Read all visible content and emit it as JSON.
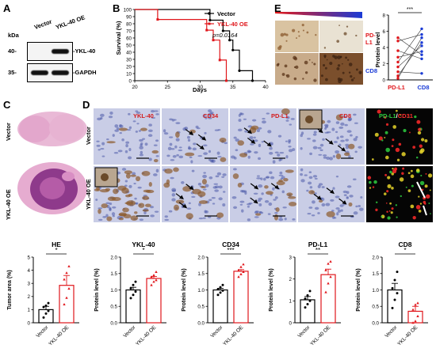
{
  "panelA": {
    "letter": "A",
    "unit": "kDa",
    "lanes": [
      "Vector",
      "YKL-40 OE"
    ],
    "rows": [
      {
        "marker": "40-",
        "protein": "-YKL-40",
        "bands": [
          0.05,
          1.0
        ]
      },
      {
        "marker": "35-",
        "protein": "-GAPDH",
        "bands": [
          1.0,
          1.0
        ]
      }
    ]
  },
  "panelB": {
    "letter": "B",
    "ylabel": "Survival (%)",
    "xlabel": "Days",
    "legend": [
      "Vector",
      "YKL-40 OE"
    ],
    "pvalue": "p=0.0164",
    "colors": {
      "vector": "#000000",
      "oe": "#e0161b"
    }
  },
  "panelC": {
    "letter": "C",
    "rows": [
      "Vector",
      "YKL-40 OE"
    ]
  },
  "panelD": {
    "letter": "D",
    "rows": [
      "Vector",
      "YKL-40 OE"
    ],
    "stains": [
      "YKL-40",
      "CD34",
      "PD-L1",
      "CD8"
    ],
    "fluor_labels": [
      "PD-L1",
      "/",
      "CD31"
    ]
  },
  "panelE": {
    "letter": "E",
    "labels": [
      "PD-L1",
      "CD8"
    ],
    "ylabel": "Protein level",
    "xlabels": [
      "PD-L1",
      "CD8"
    ],
    "significance": "***"
  },
  "chart_data": [
    {
      "type": "line",
      "panel": "B",
      "xlabel": "Days",
      "ylabel": "Survival (%)",
      "xlim": [
        20,
        40
      ],
      "ylim": [
        0,
        100
      ],
      "xticks": [
        20,
        25,
        30,
        35,
        40
      ],
      "yticks": [
        0,
        10,
        20,
        30,
        40,
        50,
        60,
        70,
        80,
        90,
        100
      ],
      "series": [
        {
          "name": "Vector",
          "steps": [
            [
              20,
              100
            ],
            [
              31.5,
              100
            ],
            [
              31.5,
              85
            ],
            [
              33.5,
              85
            ],
            [
              33.5,
              70
            ],
            [
              34.5,
              70
            ],
            [
              34.5,
              57
            ],
            [
              35,
              57
            ],
            [
              35,
              43
            ],
            [
              36,
              43
            ],
            [
              36,
              14
            ],
            [
              38,
              14
            ],
            [
              38,
              0
            ]
          ]
        },
        {
          "name": "YKL-40 OE",
          "steps": [
            [
              20,
              100
            ],
            [
              23.5,
              100
            ],
            [
              23.5,
              86
            ],
            [
              31,
              86
            ],
            [
              31,
              71
            ],
            [
              32,
              71
            ],
            [
              32,
              57
            ],
            [
              33,
              57
            ],
            [
              33,
              29
            ],
            [
              34,
              29
            ],
            [
              34,
              0
            ]
          ]
        }
      ],
      "annotation": "p=0.0164"
    },
    {
      "type": "scatter",
      "panel": "E",
      "ylabel": "Protein level",
      "xlabels": [
        "PD-L1",
        "CD8"
      ],
      "ylim": [
        0,
        8
      ],
      "yticks": [
        0,
        2,
        4,
        6,
        8
      ],
      "pairs": [
        [
          5.2,
          3.1
        ],
        [
          4.8,
          5.6
        ],
        [
          3.6,
          2.6
        ],
        [
          2.8,
          3.5
        ],
        [
          2.2,
          6.3
        ],
        [
          1.6,
          4.2
        ],
        [
          1.0,
          0.8
        ],
        [
          0.5,
          4.6
        ],
        [
          0.2,
          5.2
        ]
      ],
      "significance": "***"
    },
    {
      "type": "bar",
      "panel": "HE",
      "title": "HE",
      "ylabel": "Tumor area (%)",
      "categories": [
        "Vector",
        "YKL-40 OE"
      ],
      "values": [
        1.0,
        2.85
      ],
      "errors": [
        0.25,
        0.75
      ],
      "ylim": [
        0,
        5
      ],
      "yticks": [
        0,
        1,
        2,
        3,
        4,
        5
      ],
      "points": [
        [
          0.4,
          0.7,
          0.9,
          1.2,
          1.3,
          1.5
        ],
        [
          1.4,
          1.9,
          2.6,
          3.3,
          3.8,
          4.3
        ]
      ],
      "significance": "*"
    },
    {
      "type": "bar",
      "panel": "YKL-40",
      "title": "YKL-40",
      "ylabel": "Protein level (%)",
      "categories": [
        "Vector",
        "YKL-40 OE"
      ],
      "values": [
        1.0,
        1.35
      ],
      "errors": [
        0.08,
        0.06
      ],
      "ylim": [
        0,
        2.0
      ],
      "yticks": [
        0.0,
        0.5,
        1.0,
        1.5,
        2.0
      ],
      "points": [
        [
          0.75,
          0.85,
          0.95,
          1.05,
          1.15,
          1.25
        ],
        [
          1.15,
          1.25,
          1.3,
          1.4,
          1.45,
          1.55
        ]
      ],
      "significance": "*"
    },
    {
      "type": "bar",
      "panel": "CD34",
      "title": "CD34",
      "ylabel": "Protein level (%)",
      "categories": [
        "Vector",
        "YKL-40 OE"
      ],
      "values": [
        1.0,
        1.57
      ],
      "errors": [
        0.05,
        0.05
      ],
      "ylim": [
        0,
        2.0
      ],
      "yticks": [
        0.0,
        0.5,
        1.0,
        1.5,
        2.0
      ],
      "points": [
        [
          0.85,
          0.92,
          0.98,
          1.02,
          1.08,
          1.15
        ],
        [
          1.4,
          1.48,
          1.55,
          1.6,
          1.7,
          1.78
        ]
      ],
      "significance": "***"
    },
    {
      "type": "bar",
      "panel": "PD-L1",
      "title": "PD-L1",
      "ylabel": "Protein level (%)",
      "categories": [
        "Vector",
        "YKL-40 OE"
      ],
      "values": [
        1.05,
        2.2
      ],
      "errors": [
        0.15,
        0.25
      ],
      "ylim": [
        0,
        3
      ],
      "yticks": [
        0,
        1,
        2,
        3
      ],
      "points": [
        [
          0.7,
          0.85,
          1.0,
          1.1,
          1.25,
          1.45
        ],
        [
          1.4,
          1.8,
          2.1,
          2.4,
          2.7,
          2.8
        ]
      ],
      "significance": "**"
    },
    {
      "type": "bar",
      "panel": "CD8",
      "title": "CD8",
      "ylabel": "Protein level (%)",
      "categories": [
        "Vector",
        "YKL-40 OE"
      ],
      "values": [
        1.0,
        0.35
      ],
      "errors": [
        0.2,
        0.15
      ],
      "ylim": [
        0,
        2.0
      ],
      "yticks": [
        0.0,
        0.5,
        1.0,
        1.5,
        2.0
      ],
      "points": [
        [
          0.45,
          0.7,
          0.9,
          1.05,
          1.3,
          1.55
        ],
        [
          0.0,
          0.05,
          0.2,
          0.4,
          0.55,
          0.6
        ]
      ],
      "significance": "*"
    }
  ]
}
